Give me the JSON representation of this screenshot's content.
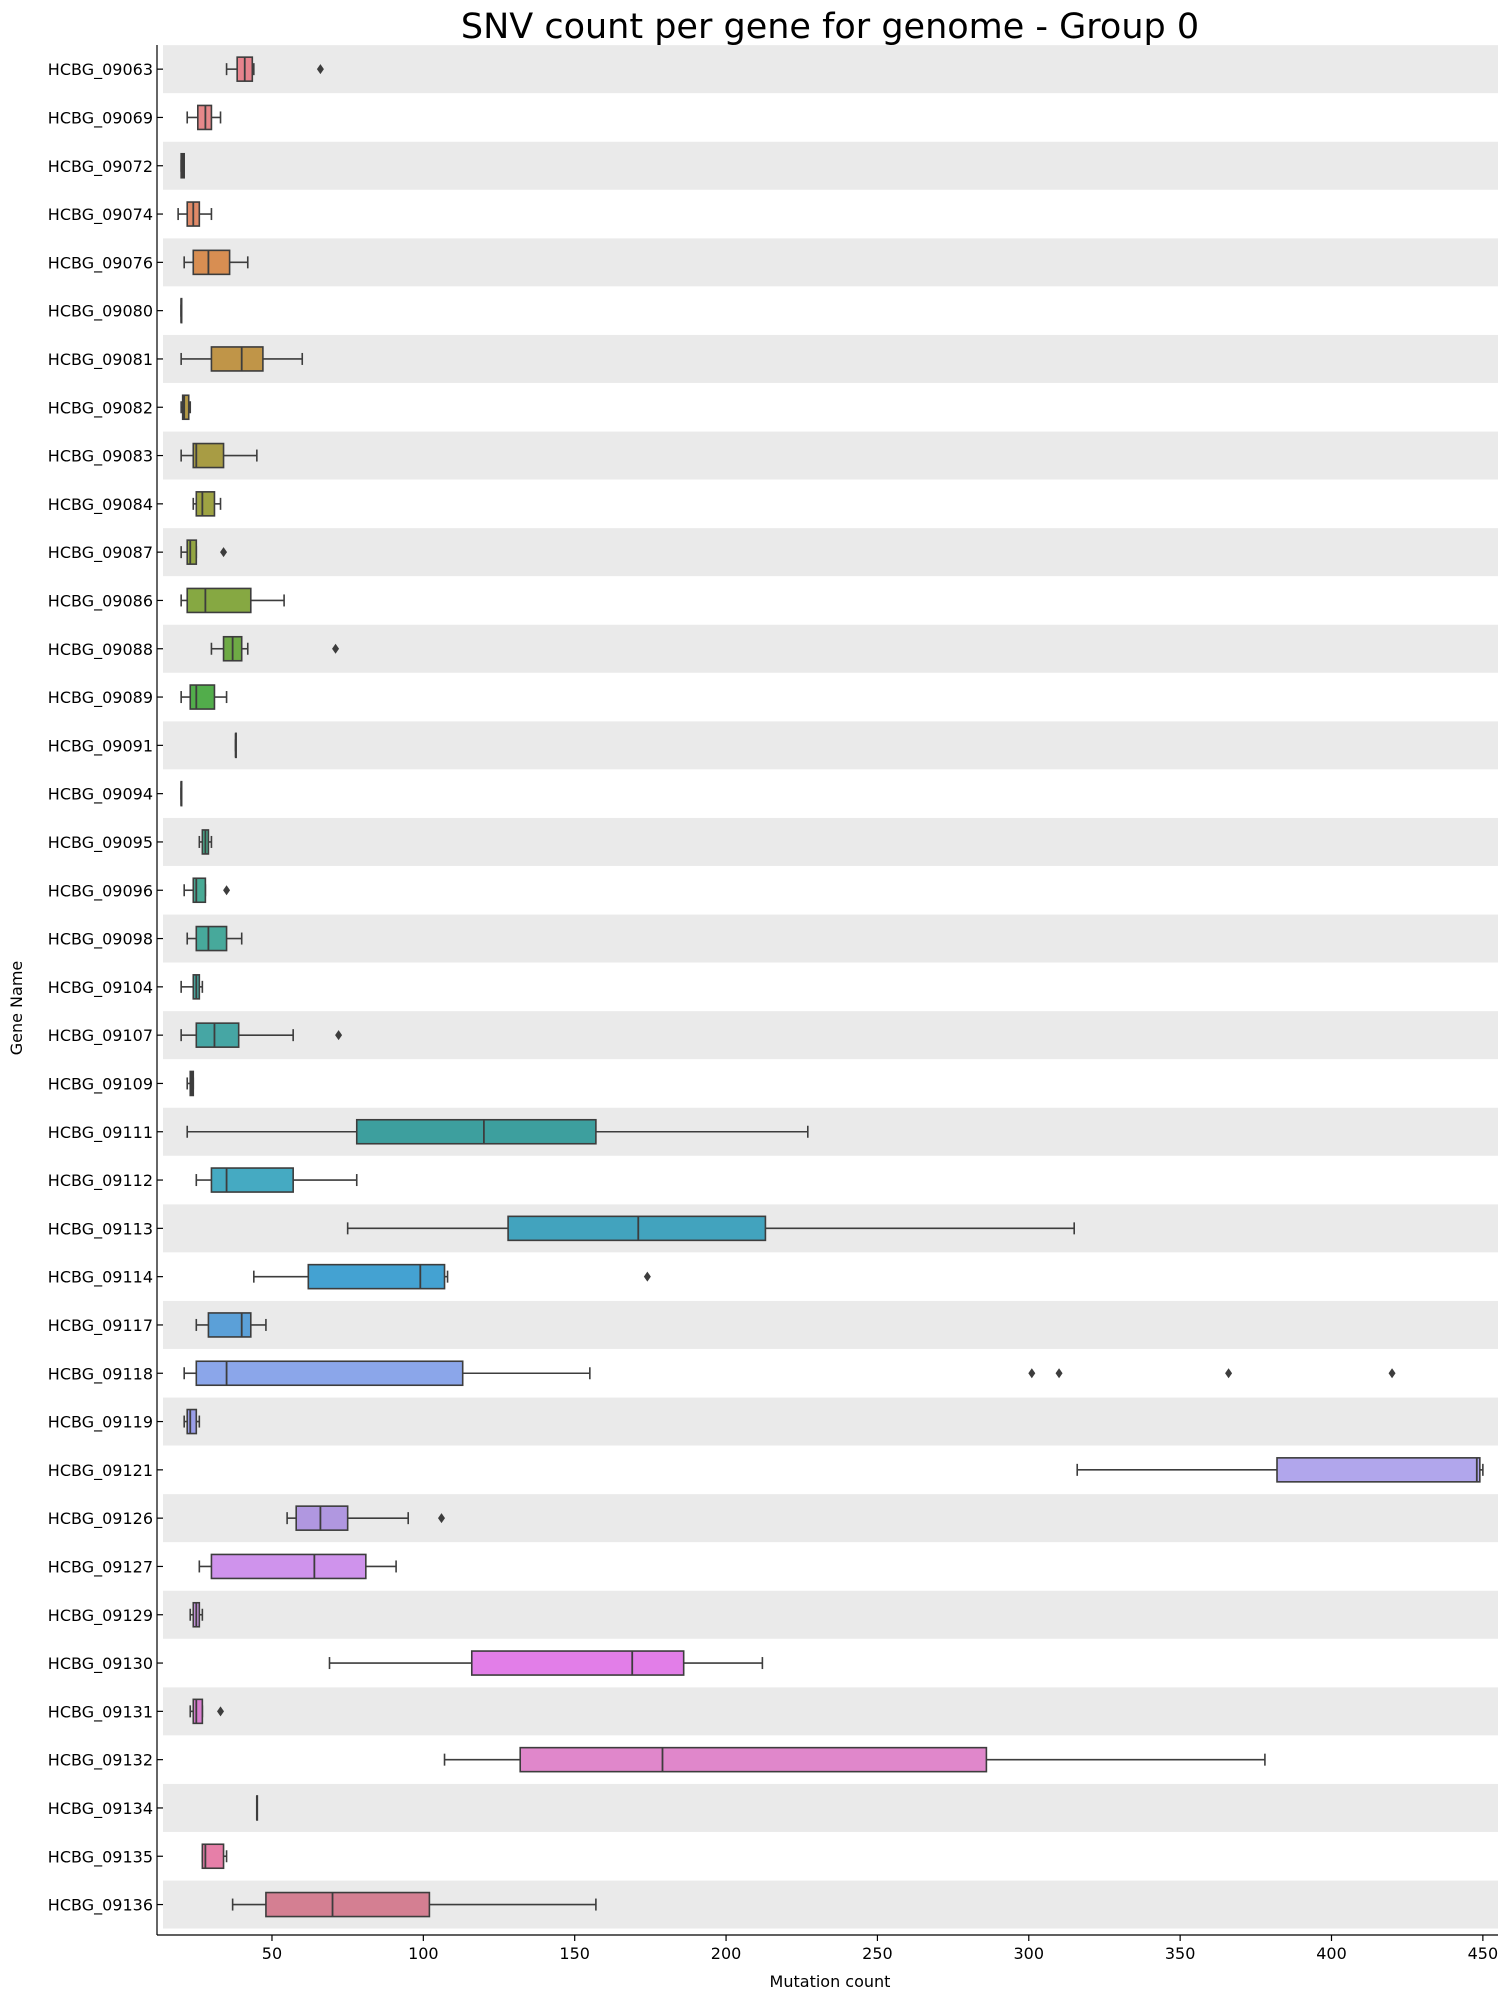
{
  "chart_data": {
    "type": "box",
    "orientation": "horizontal",
    "title": "SNV count per gene for genome - Group 0",
    "xlabel": "Mutation count",
    "ylabel": "Gene Name",
    "xlim": [
      14,
      455
    ],
    "xticks": [
      50,
      100,
      150,
      200,
      250,
      300,
      350,
      400,
      450
    ],
    "grid": false,
    "row_band_color": "#eaeaea",
    "categories": [
      "HCBG_09063",
      "HCBG_09069",
      "HCBG_09072",
      "HCBG_09074",
      "HCBG_09076",
      "HCBG_09080",
      "HCBG_09081",
      "HCBG_09082",
      "HCBG_09083",
      "HCBG_09084",
      "HCBG_09087",
      "HCBG_09086",
      "HCBG_09088",
      "HCBG_09089",
      "HCBG_09091",
      "HCBG_09094",
      "HCBG_09095",
      "HCBG_09096",
      "HCBG_09098",
      "HCBG_09104",
      "HCBG_09107",
      "HCBG_09109",
      "HCBG_09111",
      "HCBG_09112",
      "HCBG_09113",
      "HCBG_09114",
      "HCBG_09117",
      "HCBG_09118",
      "HCBG_09119",
      "HCBG_09121",
      "HCBG_09126",
      "HCBG_09127",
      "HCBG_09129",
      "HCBG_09130",
      "HCBG_09131",
      "HCBG_09132",
      "HCBG_09134",
      "HCBG_09135",
      "HCBG_09136"
    ],
    "boxes": [
      {
        "min": 35,
        "q1": 38.5,
        "median": 41,
        "q3": 43.5,
        "max": 44,
        "outliers": [
          66
        ],
        "color": "#e8838d"
      },
      {
        "min": 22,
        "q1": 25.5,
        "median": 28,
        "q3": 30,
        "max": 33,
        "outliers": [],
        "color": "#e6888a"
      },
      {
        "min": 20,
        "q1": 20,
        "median": 20.5,
        "q3": 21,
        "max": 21,
        "outliers": [],
        "color": "#e48b7e"
      },
      {
        "min": 19,
        "q1": 22,
        "median": 24,
        "q3": 26,
        "max": 30,
        "outliers": [],
        "color": "#e08a68"
      },
      {
        "min": 21,
        "q1": 24,
        "median": 29,
        "q3": 36,
        "max": 42,
        "outliers": [],
        "color": "#d88e52"
      },
      {
        "min": 20,
        "q1": 20,
        "median": 20,
        "q3": 20,
        "max": 20,
        "outliers": [],
        "color": "#cf924a"
      },
      {
        "min": 20,
        "q1": 30,
        "median": 40,
        "q3": 47,
        "max": 60,
        "outliers": [],
        "color": "#c09548"
      },
      {
        "min": 20,
        "q1": 20.5,
        "median": 21,
        "q3": 22.5,
        "max": 23,
        "outliers": [],
        "color": "#b49a46"
      },
      {
        "min": 20,
        "q1": 24,
        "median": 25,
        "q3": 34,
        "max": 45,
        "outliers": [],
        "color": "#a89c44"
      },
      {
        "min": 24,
        "q1": 25,
        "median": 27,
        "q3": 31,
        "max": 33,
        "outliers": [],
        "color": "#9ea343"
      },
      {
        "min": 20,
        "q1": 22,
        "median": 23,
        "q3": 25,
        "max": 25,
        "outliers": [
          34
        ],
        "color": "#93a542"
      },
      {
        "min": 20,
        "q1": 22,
        "median": 28,
        "q3": 43,
        "max": 54,
        "outliers": [],
        "color": "#86a842"
      },
      {
        "min": 30,
        "q1": 34,
        "median": 37,
        "q3": 40,
        "max": 42,
        "outliers": [
          71
        ],
        "color": "#6eaa45"
      },
      {
        "min": 20,
        "q1": 23,
        "median": 25,
        "q3": 31,
        "max": 35,
        "outliers": [],
        "color": "#52ad4b"
      },
      {
        "min": 38,
        "q1": 38,
        "median": 38,
        "q3": 38,
        "max": 38,
        "outliers": [],
        "color": "#4aaf6b"
      },
      {
        "min": 20,
        "q1": 20,
        "median": 20,
        "q3": 20,
        "max": 20,
        "outliers": [],
        "color": "#49ad80"
      },
      {
        "min": 26,
        "q1": 27,
        "median": 28,
        "q3": 29,
        "max": 30,
        "outliers": [],
        "color": "#49ab8c"
      },
      {
        "min": 21,
        "q1": 24,
        "median": 25,
        "q3": 28,
        "max": 28,
        "outliers": [
          35
        ],
        "color": "#48aa95"
      },
      {
        "min": 22,
        "q1": 25,
        "median": 29,
        "q3": 35,
        "max": 40,
        "outliers": [],
        "color": "#47a99b"
      },
      {
        "min": 20,
        "q1": 24,
        "median": 25,
        "q3": 26,
        "max": 27,
        "outliers": [],
        "color": "#47a79f"
      },
      {
        "min": 20,
        "q1": 25,
        "median": 31,
        "q3": 39,
        "max": 57,
        "outliers": [
          72
        ],
        "color": "#46a6a4"
      },
      {
        "min": 22,
        "q1": 23,
        "median": 23.5,
        "q3": 24,
        "max": 24,
        "outliers": [],
        "color": "#46a5a8"
      },
      {
        "min": 22,
        "q1": 78,
        "median": 120,
        "q3": 157,
        "max": 227,
        "outliers": [],
        "color": "#3d9f9e"
      },
      {
        "min": 25,
        "q1": 30,
        "median": 35,
        "q3": 57,
        "max": 78,
        "outliers": [],
        "color": "#45aac2"
      },
      {
        "min": 75,
        "q1": 128,
        "median": 171,
        "q3": 213,
        "max": 315,
        "outliers": [],
        "color": "#42a3be"
      },
      {
        "min": 44,
        "q1": 62,
        "median": 99,
        "q3": 107,
        "max": 108,
        "outliers": [
          174
        ],
        "color": "#44a2d2"
      },
      {
        "min": 25,
        "q1": 29,
        "median": 40,
        "q3": 43,
        "max": 48,
        "outliers": [],
        "color": "#5ba0d8"
      },
      {
        "min": 21,
        "q1": 25,
        "median": 35,
        "q3": 113,
        "max": 155,
        "outliers": [
          301,
          310,
          366,
          420
        ],
        "color": "#8ba6ea"
      },
      {
        "min": 21,
        "q1": 22,
        "median": 23,
        "q3": 25,
        "max": 26,
        "outliers": [],
        "color": "#9a9ee8"
      },
      {
        "min": 316,
        "q1": 382,
        "median": 448,
        "q3": 449,
        "max": 450,
        "outliers": [],
        "color": "#b1a6ec"
      },
      {
        "min": 55,
        "q1": 58,
        "median": 66,
        "q3": 75,
        "max": 95,
        "outliers": [
          106
        ],
        "color": "#b097e0"
      },
      {
        "min": 26,
        "q1": 30,
        "median": 64,
        "q3": 81,
        "max": 91,
        "outliers": [],
        "color": "#cf93ec"
      },
      {
        "min": 23,
        "q1": 24,
        "median": 25,
        "q3": 26,
        "max": 27,
        "outliers": [],
        "color": "#c895e0"
      },
      {
        "min": 69,
        "q1": 116,
        "median": 169,
        "q3": 186,
        "max": 212,
        "outliers": [],
        "color": "#e27ee8"
      },
      {
        "min": 23,
        "q1": 24,
        "median": 25,
        "q3": 27,
        "max": 27,
        "outliers": [
          33
        ],
        "color": "#d97ecf"
      },
      {
        "min": 107,
        "q1": 132,
        "median": 179,
        "q3": 286,
        "max": 378,
        "outliers": [],
        "color": "#e087cb"
      },
      {
        "min": 45,
        "q1": 45,
        "median": 45,
        "q3": 45,
        "max": 45,
        "outliers": [],
        "color": "#e07fb0"
      },
      {
        "min": 27,
        "q1": 27,
        "median": 28,
        "q3": 34,
        "max": 35,
        "outliers": [],
        "color": "#e67fa8"
      },
      {
        "min": 37,
        "q1": 48,
        "median": 70,
        "q3": 102,
        "max": 157,
        "outliers": [],
        "color": "#d47f92"
      }
    ]
  }
}
